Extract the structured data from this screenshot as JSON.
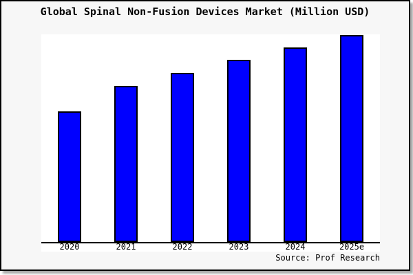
{
  "page": {
    "title": "Global Spinal Non-Fusion Devices Market (Million USD)",
    "source": "Source: Prof Research"
  },
  "chart_data": {
    "type": "bar",
    "title": "Global Spinal Non-Fusion Devices Market (Million USD)",
    "categories": [
      "2020",
      "2021",
      "2022",
      "2023",
      "2024",
      "2025e"
    ],
    "values": [
      190,
      227,
      246,
      265,
      283,
      301
    ],
    "values_note": "No y-axis scale is shown in the image; values are relative bar heights (pixels) read from the plot, steadily increasing year over year",
    "xlabel": "",
    "ylabel": "",
    "ylim": [
      0,
      302
    ],
    "grid": false,
    "legend": false,
    "annotations": [
      "Source: Prof Research"
    ],
    "bar_color": "#0000ff",
    "bar_border_color": "#000000"
  },
  "colors": {
    "figure_background": "#f7f7f7",
    "panel_background": "#ffffff",
    "bar_fill": "#0000ff",
    "bar_stroke": "#000000",
    "axis_line": "#000000",
    "text": "#000000",
    "page_border": "#000000"
  }
}
